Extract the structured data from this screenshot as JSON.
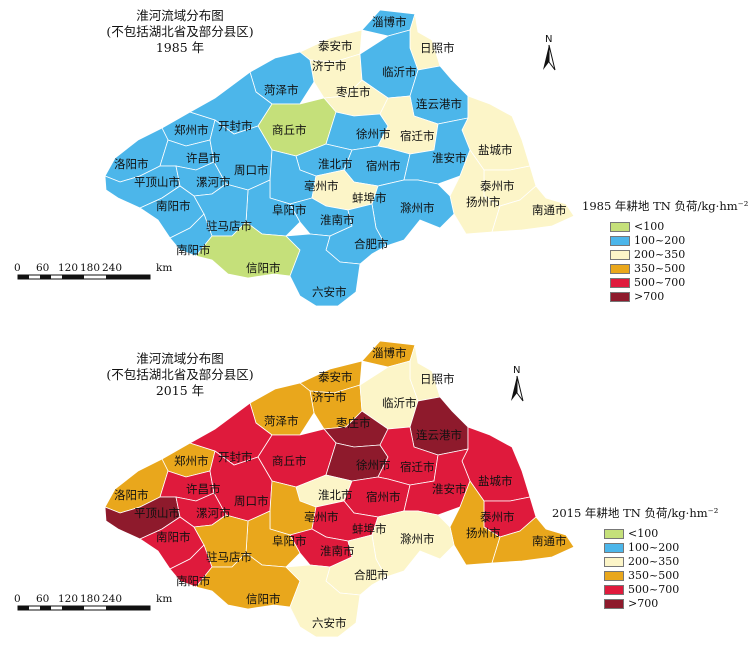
{
  "colors": {
    "lt100": "#c5e07a",
    "c100_200": "#4cb6ea",
    "c200_350": "#fcf5c8",
    "c350_500": "#e9a71c",
    "c500_700": "#df1a3c",
    "gt700": "#8e1a2c"
  },
  "north_label": "N",
  "scale_labels": [
    "0",
    "60",
    "120",
    "180",
    "240",
    "km"
  ],
  "panels": [
    {
      "title_line1": "淮河流域分布图",
      "title_line2": "(不包括湖北省及部分县区)",
      "year": "1985 年",
      "legend_title": "1985 年耕地 TN 负荷/kg·hm⁻²",
      "legend_items": [
        {
          "label": "<100",
          "color_key": "lt100"
        },
        {
          "label": "100~200",
          "color_key": "c100_200"
        },
        {
          "label": "200~350",
          "color_key": "c200_350"
        },
        {
          "label": "350~500",
          "color_key": "c350_500"
        },
        {
          "label": "500~700",
          "color_key": "c500_700"
        },
        {
          "label": ">700",
          "color_key": "gt700"
        }
      ],
      "cities": {
        "zibo": "淄博市",
        "taian": "泰安市",
        "rizhao": "日照市",
        "jining": "济宁市",
        "linyi": "临沂市",
        "heze": "菏泽市",
        "zaozhuang": "枣庄市",
        "lianyungang": "连云港市",
        "zhengzhou": "郑州市",
        "kaifeng": "开封市",
        "shangqiu": "商丘市",
        "xuzhou": "徐州市",
        "suqian": "宿迁市",
        "yancheng": "盐城市",
        "luoyang": "洛阳市",
        "xuchang": "许昌市",
        "zhoukou": "周口市",
        "huaibei": "淮北市",
        "suzhou": "宿州市",
        "huaian": "淮安市",
        "pingdingshan": "平顶山市",
        "luohe": "漯河市",
        "bozhou": "亳州市",
        "bengbu": "蚌埠市",
        "taizhou": "泰州市",
        "yangzhou": "扬州市",
        "nanyang": "南阳市",
        "fuyang": "阜阳市",
        "huainan": "淮南市",
        "chuzhou": "滁州市",
        "nantong": "南通市",
        "zhumadian": "驻马店市",
        "hefei": "合肥市",
        "nanyang2": "南阳市",
        "xinyang": "信阳市",
        "luan": "六安市"
      },
      "fills": {
        "zibo": "c100_200",
        "taian": "c200_350",
        "rizhao": "c200_350",
        "jining": "c200_350",
        "linyi": "c100_200",
        "heze": "c100_200",
        "zaozhuang": "c200_350",
        "lianyungang": "c100_200",
        "zhengzhou": "c100_200",
        "kaifeng": "c100_200",
        "shangqiu": "lt100",
        "xuzhou": "c100_200",
        "suqian": "c200_350",
        "yancheng": "c200_350",
        "luoyang": "c100_200",
        "xuchang": "c100_200",
        "zhoukou": "c100_200",
        "huaibei": "c100_200",
        "suzhou": "c100_200",
        "huaian": "c100_200",
        "pingdingshan": "c100_200",
        "luohe": "c100_200",
        "bozhou": "c100_200",
        "bengbu": "c200_350",
        "taizhou": "c200_350",
        "yangzhou": "c200_350",
        "nanyang": "c100_200",
        "fuyang": "c100_200",
        "huainan": "c100_200",
        "chuzhou": "c100_200",
        "nantong": "c200_350",
        "zhumadian": "c100_200",
        "hefei": "c100_200",
        "nanyang2": "c100_200",
        "xinyang": "lt100",
        "luan": "c100_200"
      }
    },
    {
      "title_line1": "淮河流域分布图",
      "title_line2": "(不包括湖北省及部分县区)",
      "year": "2015 年",
      "legend_title": "2015 年耕地 TN 负荷/kg·hm⁻²",
      "legend_items": [
        {
          "label": "<100",
          "color_key": "lt100"
        },
        {
          "label": "100~200",
          "color_key": "c100_200"
        },
        {
          "label": "200~350",
          "color_key": "c200_350"
        },
        {
          "label": "350~500",
          "color_key": "c350_500"
        },
        {
          "label": "500~700",
          "color_key": "c500_700"
        },
        {
          "label": ">700",
          "color_key": "gt700"
        }
      ],
      "cities": {
        "zibo": "淄博市",
        "taian": "泰安市",
        "rizhao": "日照市",
        "jining": "济宁市",
        "linyi": "临沂市",
        "heze": "菏泽市",
        "zaozhuang": "枣庄市",
        "lianyungang": "连云港市",
        "zhengzhou": "郑州市",
        "kaifeng": "开封市",
        "shangqiu": "商丘市",
        "xuzhou": "徐州市",
        "suqian": "宿迁市",
        "yancheng": "盐城市",
        "luoyang": "洛阳市",
        "xuchang": "许昌市",
        "zhoukou": "周口市",
        "huaibei": "淮北市",
        "suzhou": "宿州市",
        "huaian": "淮安市",
        "pingdingshan": "平顶山市",
        "luohe": "漯河市",
        "bozhou": "亳州市",
        "bengbu": "蚌埠市",
        "taizhou": "泰州市",
        "yangzhou": "扬州市",
        "nanyang": "南阳市",
        "fuyang": "阜阳市",
        "huainan": "淮南市",
        "chuzhou": "滁州市",
        "nantong": "南通市",
        "zhumadian": "驻马店市",
        "hefei": "合肥市",
        "nanyang2": "南阳市",
        "xinyang": "信阳市",
        "luan": "六安市"
      },
      "fills": {
        "zibo": "c350_500",
        "taian": "c350_500",
        "rizhao": "c200_350",
        "jining": "c350_500",
        "linyi": "c200_350",
        "heze": "c350_500",
        "zaozhuang": "gt700",
        "lianyungang": "gt700",
        "zhengzhou": "c350_500",
        "kaifeng": "c500_700",
        "shangqiu": "c500_700",
        "xuzhou": "gt700",
        "suqian": "c500_700",
        "yancheng": "c500_700",
        "luoyang": "c350_500",
        "xuchang": "c500_700",
        "zhoukou": "c500_700",
        "huaibei": "c200_350",
        "suzhou": "c500_700",
        "huaian": "c500_700",
        "pingdingshan": "gt700",
        "luohe": "c500_700",
        "bozhou": "c350_500",
        "bengbu": "c500_700",
        "taizhou": "c500_700",
        "yangzhou": "c350_500",
        "nanyang": "c500_700",
        "fuyang": "c350_500",
        "huainan": "c500_700",
        "chuzhou": "c200_350",
        "nantong": "c350_500",
        "zhumadian": "c350_500",
        "hefei": "c200_350",
        "nanyang2": "c500_700",
        "xinyang": "c350_500",
        "luan": "c200_350"
      }
    }
  ]
}
